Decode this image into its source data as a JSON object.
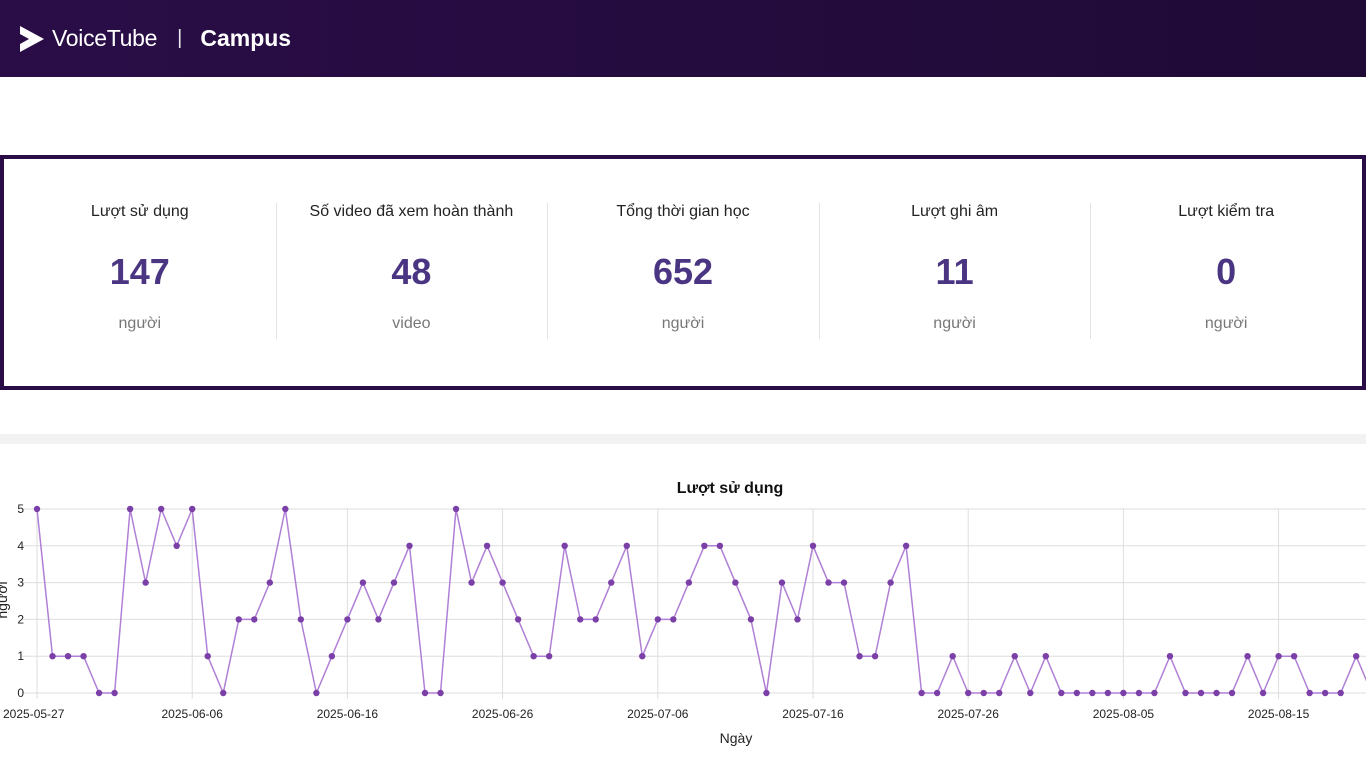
{
  "header": {
    "logo_text": "VoiceTube",
    "separator": "|",
    "subtitle": "Campus"
  },
  "stats": [
    {
      "label": "Lượt sử dụng",
      "value": "147",
      "unit": "người"
    },
    {
      "label": "Số video đã xem hoàn thành",
      "value": "48",
      "unit": "video"
    },
    {
      "label": "Tổng thời gian học",
      "value": "652",
      "unit": "người"
    },
    {
      "label": "Lượt ghi âm",
      "value": "11",
      "unit": "người"
    },
    {
      "label": "Lượt kiểm tra",
      "value": "0",
      "unit": "người"
    }
  ],
  "colors": {
    "header_bg": "#2a0d47",
    "accent": "#4a3582",
    "line": "#b07fd6",
    "point": "#7b3fa8"
  },
  "chart_data": {
    "type": "line",
    "title": "Lượt sử dụng",
    "xlabel": "Ngày",
    "ylabel": "người",
    "ylim": [
      0,
      5
    ],
    "yticks": [
      "0",
      "1",
      "2",
      "3",
      "4",
      "5"
    ],
    "xticks": [
      "2025-05-27",
      "2025-06-06",
      "2025-06-16",
      "2025-06-26",
      "2025-07-06",
      "2025-07-16",
      "2025-07-26",
      "2025-08-05",
      "2025-08-15"
    ],
    "grid": true,
    "series": [
      {
        "values": [
          5,
          1,
          1,
          1,
          0,
          0,
          5,
          3,
          5,
          4,
          5,
          1,
          0,
          2,
          2,
          3,
          5,
          2,
          0,
          1,
          2,
          3,
          2,
          3,
          4,
          0,
          0,
          5,
          3,
          4,
          3,
          2,
          1,
          1,
          4,
          2,
          2,
          3,
          4,
          1,
          2,
          2,
          3,
          4,
          4,
          3,
          2,
          0,
          3,
          2,
          4,
          3,
          3,
          1,
          1,
          3,
          4,
          0,
          0,
          1,
          0,
          0,
          0,
          1,
          0,
          1,
          0,
          0,
          0,
          0,
          0,
          0,
          0,
          1,
          0,
          0,
          0,
          0,
          1,
          0,
          1,
          1,
          0,
          0,
          0,
          1,
          0
        ]
      }
    ]
  }
}
